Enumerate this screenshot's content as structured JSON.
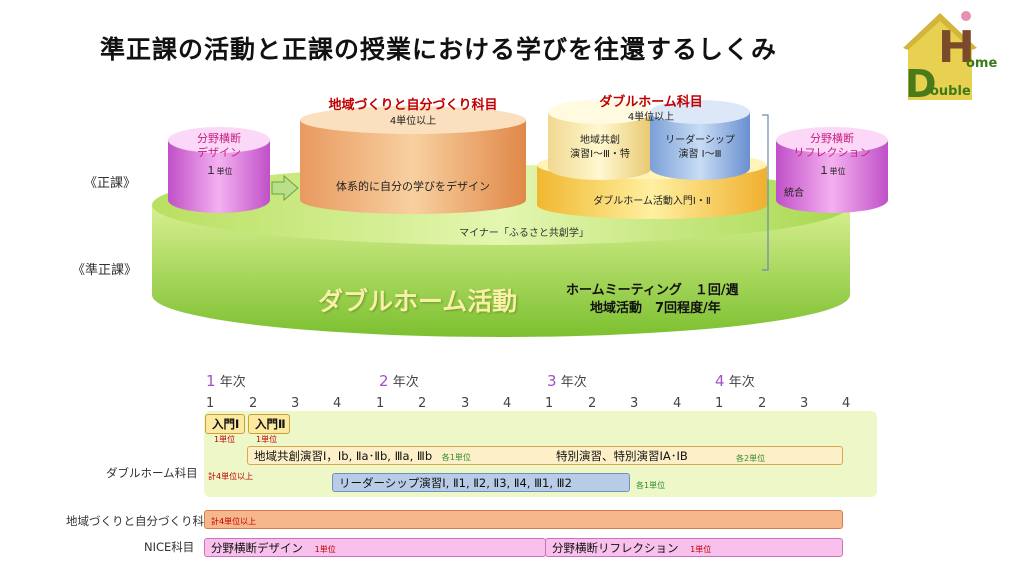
{
  "title": "準正課の活動と正課の授業における学びを往還するしくみ",
  "logo": {
    "letter_h": "H",
    "ome": "ome",
    "letter_d": "D",
    "ouble": "ouble"
  },
  "diagram": {
    "seika_label": "《正課》",
    "junseika_label": "《準正課》",
    "design_title": "分野横断\nデザイン",
    "design_credit_num": "１",
    "design_credit_unit": "単位",
    "chiiki_title": "地域づくりと自分づくり科目",
    "chiiki_credit": "4単位以上",
    "chiiki_body": "体系的に自分の学びをデザイン",
    "double_title": "ダブルホーム科目",
    "double_credit": "4単位以上",
    "kyoso": "地域共創\n演習Ⅰ～Ⅲ・特",
    "leader": "リーダーシップ\n演習 Ⅰ～Ⅲ",
    "nyumon": "ダブルホーム活動入門Ⅰ・Ⅱ",
    "reflection_title": "分野横断\nリフレクション",
    "reflection_credit_num": "１",
    "reflection_credit_unit": "単位",
    "togo": "統合",
    "minor": "マイナー「ふるさと共創学」",
    "activity": "ダブルホーム活動",
    "meeting": "ホームミーティング　１回/週",
    "chiiki_katsudo": "地域活動　7回程度/年"
  },
  "timeline": {
    "years": [
      {
        "num": "1",
        "label": "年次"
      },
      {
        "num": "2",
        "label": "年次"
      },
      {
        "num": "3",
        "label": "年次"
      },
      {
        "num": "4",
        "label": "年次"
      }
    ],
    "terms": [
      "1",
      "2",
      "3",
      "4",
      "1",
      "2",
      "3",
      "4",
      "1",
      "2",
      "3",
      "4",
      "1",
      "2",
      "3",
      "4"
    ],
    "rows": {
      "double": "ダブルホーム科目",
      "chiiki": "地域づくりと自分づくり科目",
      "nice": "NICE科目"
    },
    "nyumon1": "入門Ⅰ",
    "nyumon2": "入門Ⅱ",
    "credit1a": "1単位",
    "credit1b": "1単位",
    "kyoso_bar": "地域共創演習Ⅰ，Ⅰb, Ⅱa･Ⅱb, Ⅲa, Ⅲb",
    "kyoso_credit": "各1単位",
    "tokubetsu": "特別演習、特別演習ⅠA･ⅠB",
    "tokubetsu_credit": "各2単位",
    "total4": "計4単位以上",
    "leader_bar": "リーダーシップ演習Ⅰ, Ⅱ1, Ⅱ2, Ⅱ3, Ⅱ4, Ⅲ1, Ⅲ2",
    "leader_credit": "各1単位",
    "chiiki_total": "計4単位以上",
    "nice_design": "分野横断デザイン",
    "nice_design_credit": "1単位",
    "nice_reflection": "分野横断リフレクション",
    "nice_reflection_credit": "1単位"
  }
}
